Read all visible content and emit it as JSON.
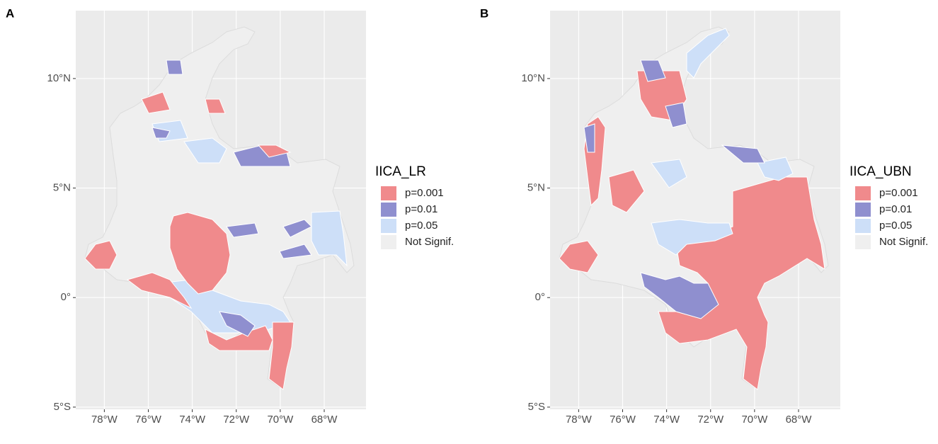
{
  "panels": [
    {
      "label": "A",
      "legend": {
        "title": "IICA_LR",
        "items": [
          {
            "label": "p=0.001",
            "color": "#f08a8c"
          },
          {
            "label": "p=0.01",
            "color": "#8f8fcf"
          },
          {
            "label": "p=0.05",
            "color": "#cddff8"
          },
          {
            "label": "Not Signif.",
            "color": "#efefef"
          }
        ]
      }
    },
    {
      "label": "B",
      "legend": {
        "title": "IICA_UBN",
        "items": [
          {
            "label": "p=0.001",
            "color": "#f08a8c"
          },
          {
            "label": "p=0.01",
            "color": "#8f8fcf"
          },
          {
            "label": "p=0.05",
            "color": "#cddff8"
          },
          {
            "label": "Not Signif.",
            "color": "#efefef"
          }
        ]
      }
    }
  ],
  "axes": {
    "xlim": [
      -79.3,
      -66.1
    ],
    "ylim": [
      -5.1,
      13.1
    ],
    "xticks": [
      {
        "value": -78,
        "label": "78°W"
      },
      {
        "value": -76,
        "label": "76°W"
      },
      {
        "value": -74,
        "label": "74°W"
      },
      {
        "value": -72,
        "label": "72°W"
      },
      {
        "value": -70,
        "label": "70°W"
      },
      {
        "value": -68,
        "label": "68°W"
      }
    ],
    "yticks": [
      {
        "value": -5,
        "label": "5°S"
      },
      {
        "value": 0,
        "label": "0°"
      },
      {
        "value": 5,
        "label": "5°N"
      },
      {
        "value": 10,
        "label": "10°N"
      }
    ]
  }
}
